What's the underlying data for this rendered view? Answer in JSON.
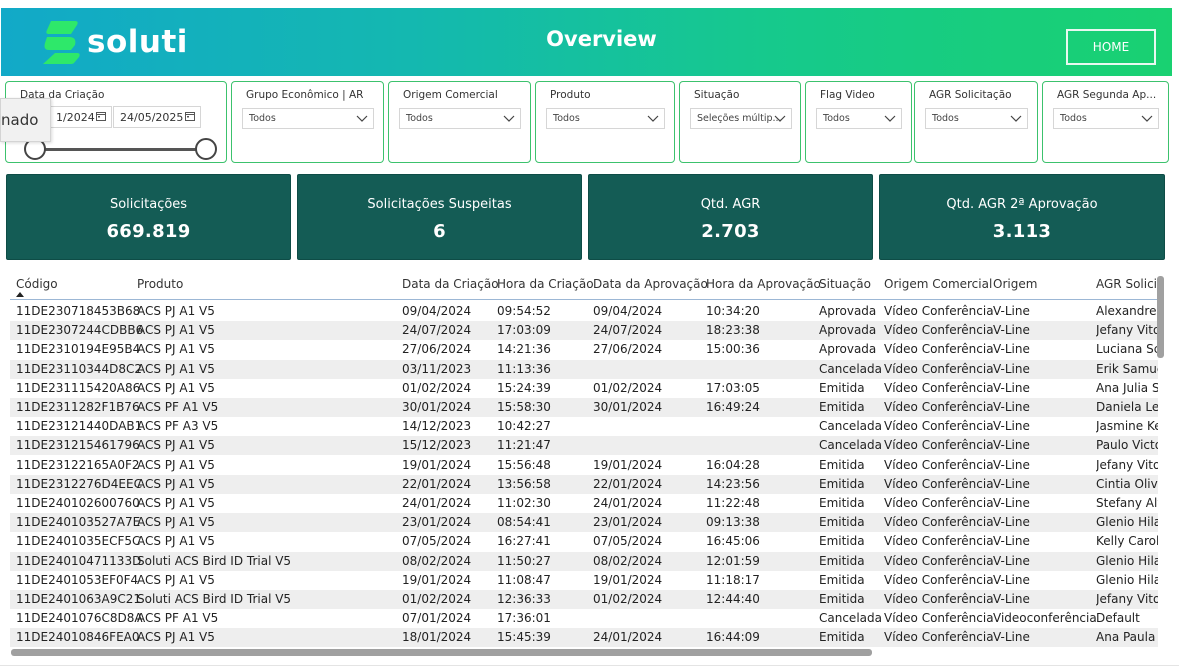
{
  "header": {
    "logo_text": "soluti",
    "title": "Overview",
    "home_label": "HOME",
    "colors": {
      "gradient_start": "#12a9c8",
      "gradient_end": "#19d171",
      "kpi_bg": "#145c55",
      "filter_border": "#3cc26d"
    }
  },
  "tooltip": {
    "text": "nado"
  },
  "filters": {
    "date": {
      "label": "Data da Criação",
      "start": "1/2024",
      "end": "24/05/2025"
    },
    "items": [
      {
        "label": "Grupo Econômico | AR",
        "value": "Todos"
      },
      {
        "label": "Origem Comercial",
        "value": "Todos"
      },
      {
        "label": "Produto",
        "value": "Todos"
      },
      {
        "label": "Situação",
        "value": "Seleções múltip..."
      },
      {
        "label": "Flag Video",
        "value": "Todos"
      },
      {
        "label": "AGR Solicitação",
        "value": "Todos"
      },
      {
        "label": "AGR Segunda Ap...",
        "value": "Todos"
      }
    ]
  },
  "kpis": [
    {
      "label": "Solicitações",
      "value": "669.819"
    },
    {
      "label": "Solicitações Suspeitas",
      "value": "6"
    },
    {
      "label": "Qtd. AGR",
      "value": "2.703"
    },
    {
      "label": "Qtd. AGR 2ª Aprovação",
      "value": "3.113"
    }
  ],
  "table": {
    "columns": [
      "Código",
      "Produto",
      "Data da Criação",
      "Hora da Criação",
      "Data da Aprovação",
      "Hora da Aprovação",
      "Situação",
      "Origem Comercial",
      "Origem",
      "AGR Solicit"
    ],
    "rows": [
      [
        "11DE230718453B68",
        "ACS PJ A1 V5",
        "09/04/2024",
        "09:54:52",
        "09/04/2024",
        "10:34:20",
        "Aprovada",
        "Vídeo Conferência",
        "V-Line",
        "Alexandre D"
      ],
      [
        "11DE2307244CDBB6",
        "ACS PJ A1 V5",
        "24/07/2024",
        "17:03:09",
        "24/07/2024",
        "18:23:38",
        "Aprovada",
        "Vídeo Conferência",
        "V-Line",
        "Jefany Vitor"
      ],
      [
        "11DE2310194E95B4",
        "ACS PJ A1 V5",
        "27/06/2024",
        "14:21:36",
        "27/06/2024",
        "15:00:36",
        "Aprovada",
        "Vídeo Conferência",
        "V-Line",
        "Luciana Sca"
      ],
      [
        "11DE23110344D8C2",
        "ACS PJ A1 V5",
        "03/11/2023",
        "11:13:36",
        "",
        "",
        "Cancelada",
        "Vídeo Conferência",
        "V-Line",
        "Erik Samuel"
      ],
      [
        "11DE2311154 20A86",
        "ACS PJ A1 V5",
        "01/02/2024",
        "15:24:39",
        "01/02/2024",
        "17:03:05",
        "Emitida",
        "Vídeo Conferência",
        "V-Line",
        "Ana Julia Si"
      ],
      [
        "11DE2311282F1B76",
        "ACS PF A1 V5",
        "30/01/2024",
        "15:58:30",
        "30/01/2024",
        "16:49:24",
        "Emitida",
        "Vídeo Conferência",
        "V-Line",
        "Daniela Lei"
      ],
      [
        "11DE23121440DAB1",
        "ACS PF A3 V5",
        "14/12/2023",
        "10:42:27",
        "",
        "",
        "Cancelada",
        "Vídeo Conferência",
        "V-Line",
        "Jasmine Ke"
      ],
      [
        "11DE23121 5461796",
        "ACS PJ A1 V5",
        "15/12/2023",
        "11:21:47",
        "",
        "",
        "Cancelada",
        "Vídeo Conferência",
        "V-Line",
        "Paulo Victo"
      ],
      [
        "11DE23122165A0F2",
        "ACS PJ A1 V5",
        "19/01/2024",
        "15:56:48",
        "19/01/2024",
        "16:04:28",
        "Emitida",
        "Vídeo Conferência",
        "V-Line",
        "Jefany Vitor"
      ],
      [
        "11DE2312276D4EEC",
        "ACS PJ A1 V5",
        "22/01/2024",
        "13:56:58",
        "22/01/2024",
        "14:23:56",
        "Emitida",
        "Vídeo Conferência",
        "V-Line",
        "Cintia Olive"
      ],
      [
        "11DE240102600760",
        "ACS PJ A1 V5",
        "24/01/2024",
        "11:02:30",
        "24/01/2024",
        "11:22:48",
        "Emitida",
        "Vídeo Conferência",
        "V-Line",
        "Stefany Alv"
      ],
      [
        "11DE240103527A7E",
        "ACS PJ A1 V5",
        "23/01/2024",
        "08:54:41",
        "23/01/2024",
        "09:13:38",
        "Emitida",
        "Vídeo Conferência",
        "V-Line",
        "Glenio Hila"
      ],
      [
        "11DE2401035ECF5C",
        "ACS PJ A1 V5",
        "07/05/2024",
        "16:27:41",
        "07/05/2024",
        "16:45:06",
        "Emitida",
        "Vídeo Conferência",
        "V-Line",
        "Kelly Caroli"
      ],
      [
        "11DE24010471133D",
        "Soluti ACS Bird ID Trial V5",
        "08/02/2024",
        "11:50:27",
        "08/02/2024",
        "12:01:59",
        "Emitida",
        "Vídeo Conferência",
        "V-Line",
        "Glenio Hila"
      ],
      [
        "11DE2401053EF0F4",
        "ACS PJ A1 V5",
        "19/01/2024",
        "11:08:47",
        "19/01/2024",
        "11:18:17",
        "Emitida",
        "Vídeo Conferência",
        "V-Line",
        "Glenio Hila"
      ],
      [
        "11DE2401063A9C21",
        "Soluti ACS Bird ID Trial V5",
        "01/02/2024",
        "12:36:33",
        "01/02/2024",
        "12:44:40",
        "Emitida",
        "Vídeo Conferência",
        "V-Line",
        "Jefany Vitor"
      ],
      [
        "11DE2401076C8D8A",
        "ACS PF A1 V5",
        "07/01/2024",
        "17:36:01",
        "",
        "",
        "Cancelada",
        "Vídeo Conferência",
        "Videoconferência",
        "Default"
      ],
      [
        "11DE24010846FEA0",
        "ACS PJ A1 V5",
        "18/01/2024",
        "15:45:39",
        "24/01/2024",
        "16:44:09",
        "Emitida",
        "Vídeo Conferência",
        "V-Line",
        "Ana Paula C"
      ]
    ]
  }
}
